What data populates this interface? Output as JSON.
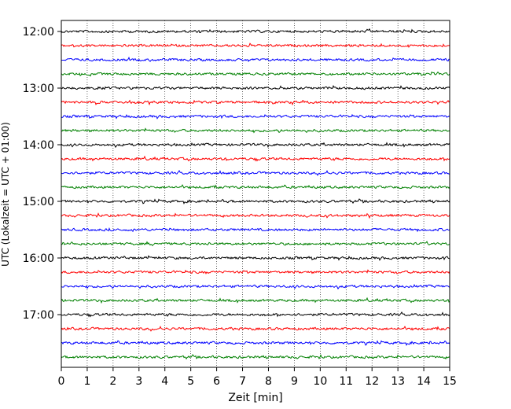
{
  "chart_data": {
    "type": "line",
    "title": "",
    "xlabel": "Zeit  [min]",
    "ylabel": "UTC (Lokalzeit = UTC + 01:00)",
    "xlim": [
      0,
      15
    ],
    "x_ticks": [
      "0",
      "1",
      "2",
      "3",
      "4",
      "5",
      "6",
      "7",
      "8",
      "9",
      "10",
      "11",
      "12",
      "13",
      "14",
      "15"
    ],
    "y_tick_labels": [
      "12:00",
      "13:00",
      "14:00",
      "15:00",
      "16:00",
      "17:00"
    ],
    "y_ticks_hours": [
      12,
      13,
      14,
      15,
      16,
      17
    ],
    "trace_interval_minutes": 15,
    "trace_start": "12:00",
    "trace_count": 24,
    "trace_color_cycle": [
      "#000000",
      "#ff0000",
      "#0000ff",
      "#008000"
    ],
    "grid": {
      "vertical_dotted": true,
      "horizontal": false
    },
    "series": []
  }
}
